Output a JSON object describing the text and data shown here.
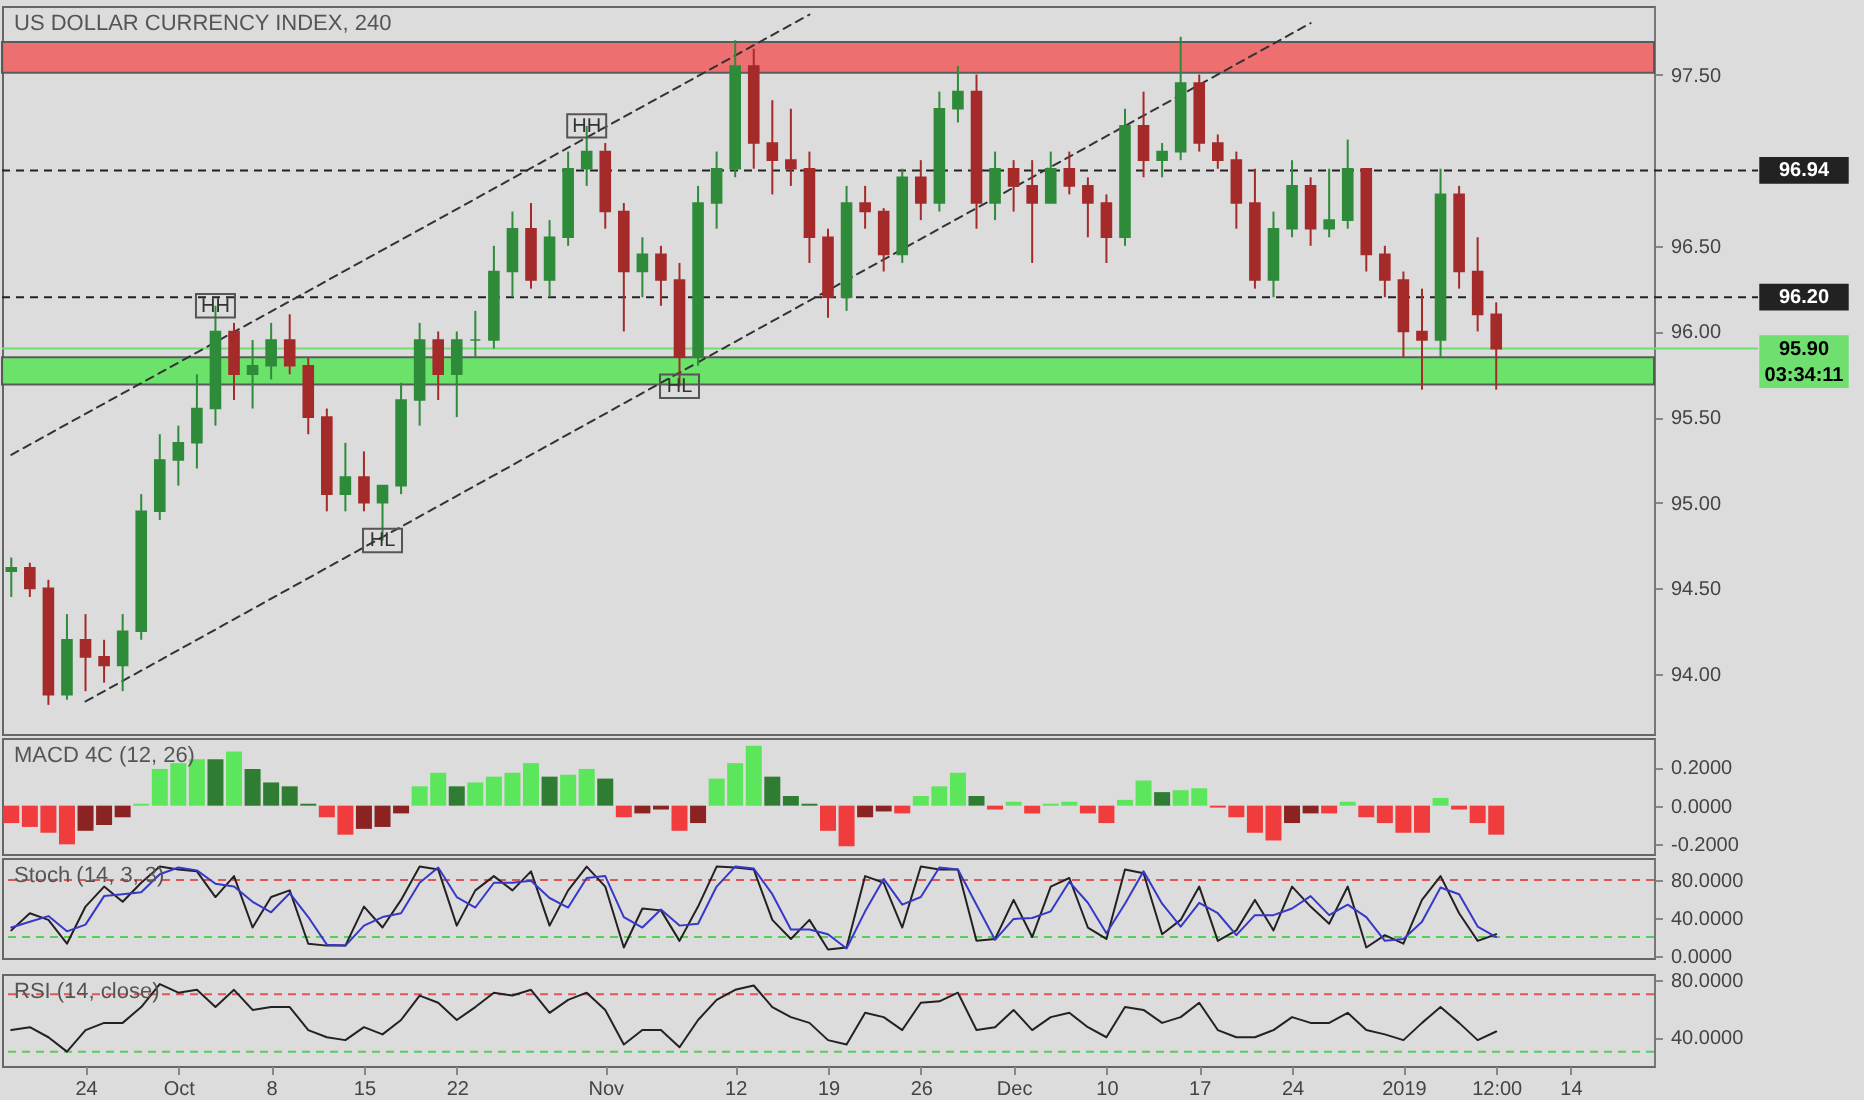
{
  "chart_data": [
    {
      "type": "candlestick",
      "title": "US DOLLAR CURRENCY INDEX, 240",
      "tick_labels": "y",
      "categories": [
        null,
        null,
        null,
        null,
        null,
        null,
        null,
        null,
        null,
        null,
        null,
        null,
        null,
        null,
        null,
        null,
        null,
        null,
        null,
        null,
        null,
        null,
        null,
        null,
        null,
        null,
        null,
        null,
        null,
        null,
        null,
        null,
        null,
        null,
        null,
        null,
        null,
        null,
        null,
        null,
        null,
        null,
        null,
        null,
        null,
        null,
        null,
        null,
        null,
        null,
        null,
        null,
        null,
        null,
        null,
        null,
        null,
        null,
        null,
        null,
        null,
        null,
        null,
        null,
        null,
        null,
        null,
        null,
        null,
        null,
        null,
        null,
        null,
        null,
        null,
        null,
        null,
        null,
        null,
        null,
        null,
        null,
        null,
        null,
        null,
        null,
        null,
        null,
        null
      ],
      "ohlc": [
        [
          94.6,
          94.68,
          94.45,
          94.62
        ],
        [
          94.62,
          94.65,
          94.45,
          94.5
        ],
        [
          94.5,
          94.55,
          93.82,
          93.88
        ],
        [
          93.88,
          94.35,
          93.85,
          94.2
        ],
        [
          94.2,
          94.35,
          93.9,
          94.1
        ],
        [
          94.1,
          94.2,
          93.95,
          94.05
        ],
        [
          94.05,
          94.35,
          93.9,
          94.25
        ],
        [
          94.25,
          95.05,
          94.2,
          94.95
        ],
        [
          94.95,
          95.4,
          94.9,
          95.25
        ],
        [
          95.25,
          95.45,
          95.1,
          95.35
        ],
        [
          95.35,
          95.75,
          95.2,
          95.55
        ],
        [
          95.55,
          96.15,
          95.45,
          96.0
        ],
        [
          96.0,
          96.05,
          95.6,
          95.75
        ],
        [
          95.75,
          95.95,
          95.55,
          95.8
        ],
        [
          95.8,
          96.05,
          95.72,
          95.95
        ],
        [
          95.95,
          96.1,
          95.75,
          95.8
        ],
        [
          95.8,
          95.85,
          95.4,
          95.5
        ],
        [
          95.5,
          95.55,
          94.95,
          95.05
        ],
        [
          95.05,
          95.35,
          94.95,
          95.15
        ],
        [
          95.15,
          95.3,
          94.95,
          95.0
        ],
        [
          95.0,
          95.1,
          94.78,
          95.1
        ],
        [
          95.1,
          95.7,
          95.05,
          95.6
        ],
        [
          95.6,
          96.05,
          95.45,
          95.95
        ],
        [
          95.95,
          96.0,
          95.6,
          95.75
        ],
        [
          95.75,
          96.0,
          95.5,
          95.95
        ],
        [
          95.95,
          96.12,
          95.85,
          95.95
        ],
        [
          95.95,
          96.5,
          95.9,
          96.35
        ],
        [
          96.35,
          96.7,
          96.2,
          96.6
        ],
        [
          96.6,
          96.75,
          96.25,
          96.3
        ],
        [
          96.3,
          96.65,
          96.2,
          96.55
        ],
        [
          96.55,
          97.05,
          96.5,
          96.95
        ],
        [
          96.95,
          97.2,
          96.85,
          97.05
        ],
        [
          97.05,
          97.1,
          96.6,
          96.7
        ],
        [
          96.7,
          96.75,
          96.0,
          96.35
        ],
        [
          96.35,
          96.55,
          96.2,
          96.45
        ],
        [
          96.45,
          96.5,
          96.15,
          96.3
        ],
        [
          96.3,
          96.4,
          95.68,
          95.85
        ],
        [
          95.85,
          96.85,
          95.8,
          96.75
        ],
        [
          96.75,
          97.05,
          96.6,
          96.95
        ],
        [
          96.95,
          97.7,
          96.9,
          97.55
        ],
        [
          97.55,
          97.65,
          96.95,
          97.1
        ],
        [
          97.1,
          97.35,
          96.8,
          97.0
        ],
        [
          97.0,
          97.3,
          96.85,
          96.95
        ],
        [
          96.95,
          97.05,
          96.4,
          96.55
        ],
        [
          96.55,
          96.6,
          96.08,
          96.2
        ],
        [
          96.2,
          96.85,
          96.12,
          96.75
        ],
        [
          96.75,
          96.85,
          96.6,
          96.7
        ],
        [
          96.7,
          96.72,
          96.35,
          96.45
        ],
        [
          96.45,
          96.95,
          96.4,
          96.9
        ],
        [
          96.9,
          97.0,
          96.65,
          96.75
        ],
        [
          96.75,
          97.4,
          96.7,
          97.3
        ],
        [
          97.3,
          97.55,
          97.22,
          97.4
        ],
        [
          97.4,
          97.5,
          96.6,
          96.75
        ],
        [
          96.75,
          97.05,
          96.65,
          96.95
        ],
        [
          96.95,
          97.0,
          96.7,
          96.85
        ],
        [
          96.85,
          97.0,
          96.4,
          96.75
        ],
        [
          96.75,
          97.05,
          96.75,
          96.95
        ],
        [
          96.95,
          97.05,
          96.8,
          96.85
        ],
        [
          96.85,
          96.9,
          96.55,
          96.75
        ],
        [
          96.75,
          96.8,
          96.4,
          96.55
        ],
        [
          96.55,
          97.3,
          96.5,
          97.2
        ],
        [
          97.2,
          97.4,
          96.9,
          97.0
        ],
        [
          97.0,
          97.1,
          96.9,
          97.05
        ],
        [
          97.05,
          97.72,
          97.0,
          97.45
        ],
        [
          97.45,
          97.5,
          97.05,
          97.1
        ],
        [
          97.1,
          97.15,
          96.95,
          97.0
        ],
        [
          97.0,
          97.05,
          96.6,
          96.75
        ],
        [
          96.75,
          96.95,
          96.25,
          96.3
        ],
        [
          96.3,
          96.7,
          96.2,
          96.6
        ],
        [
          96.6,
          97.0,
          96.55,
          96.85
        ],
        [
          96.85,
          96.9,
          96.5,
          96.6
        ],
        [
          96.6,
          96.95,
          96.55,
          96.65
        ],
        [
          96.65,
          97.12,
          96.6,
          96.95
        ],
        [
          96.95,
          96.95,
          96.35,
          96.45
        ],
        [
          96.45,
          96.5,
          96.2,
          96.3
        ],
        [
          96.3,
          96.35,
          95.85,
          96.0
        ],
        [
          96.0,
          96.25,
          95.66,
          95.95
        ],
        [
          95.95,
          96.95,
          95.85,
          96.8
        ],
        [
          96.8,
          96.85,
          96.25,
          96.35
        ],
        [
          96.35,
          96.55,
          96.0,
          96.1
        ],
        [
          96.1,
          96.17,
          95.66,
          95.9
        ],
        null,
        null,
        null,
        null,
        null,
        null,
        null,
        null
      ],
      "colors": [
        "#2e8b3a",
        "#a52a2a",
        "#a52a2a",
        "#2e8b3a",
        "#a52a2a",
        "#a52a2a",
        "#2e8b3a",
        "#2e8b3a",
        "#2e8b3a",
        "#2e8b3a",
        "#2e8b3a",
        "#2e8b3a",
        "#a52a2a",
        "#2e8b3a",
        "#2e8b3a",
        "#a52a2a",
        "#a52a2a",
        "#a52a2a",
        "#2e8b3a",
        "#a52a2a",
        "#2e8b3a",
        "#2e8b3a",
        "#2e8b3a",
        "#a52a2a",
        "#2e8b3a",
        "#2e8b3a",
        "#2e8b3a",
        "#2e8b3a",
        "#a52a2a",
        "#2e8b3a",
        "#2e8b3a",
        "#2e8b3a",
        "#a52a2a",
        "#a52a2a",
        "#2e8b3a",
        "#a52a2a",
        "#a52a2a",
        "#2e8b3a",
        "#2e8b3a",
        "#2e8b3a",
        "#a52a2a",
        "#a52a2a",
        "#a52a2a",
        "#a52a2a",
        "#a52a2a",
        "#2e8b3a",
        "#a52a2a",
        "#a52a2a",
        "#2e8b3a",
        "#a52a2a",
        "#2e8b3a",
        "#2e8b3a",
        "#a52a2a",
        "#2e8b3a",
        "#a52a2a",
        "#a52a2a",
        "#2e8b3a",
        "#a52a2a",
        "#a52a2a",
        "#a52a2a",
        "#2e8b3a",
        "#a52a2a",
        "#2e8b3a",
        "#2e8b3a",
        "#a52a2a",
        "#a52a2a",
        "#a52a2a",
        "#a52a2a",
        "#2e8b3a",
        "#2e8b3a",
        "#a52a2a",
        "#2e8b3a",
        "#2e8b3a",
        "#a52a2a",
        "#a52a2a",
        "#a52a2a",
        "#a52a2a",
        "#2e8b3a",
        "#a52a2a",
        "#a52a2a",
        "#a52a2a",
        null,
        null,
        null,
        null,
        null,
        null,
        null,
        null
      ],
      "series": [
        {
          "type": "line",
          "color": "#333333",
          "line_style": "dashed",
          "values": [
            95.28,
            null,
            null,
            null,
            null,
            null,
            null,
            null,
            null,
            null,
            null,
            null,
            null,
            null,
            null,
            null,
            null,
            null,
            null,
            null,
            null,
            null,
            null,
            null,
            null,
            null,
            null,
            null,
            null,
            null,
            null,
            null,
            null,
            null,
            null,
            null,
            null,
            null,
            null,
            null,
            null,
            null,
            null,
            97.85,
            null,
            null,
            null,
            null,
            null,
            null,
            null,
            null,
            null,
            null,
            null,
            null,
            null,
            null,
            null,
            null,
            null,
            null,
            null,
            null,
            null,
            null,
            null,
            null,
            null,
            null,
            null,
            null,
            null,
            null,
            null,
            null,
            null,
            null,
            null,
            null,
            null,
            null,
            null,
            null,
            null,
            null,
            null,
            null,
            null
          ]
        },
        {
          "type": "line",
          "color": "#333333",
          "line_style": "dashed",
          "values": [
            null,
            null,
            null,
            null,
            93.84,
            null,
            null,
            null,
            null,
            null,
            null,
            null,
            null,
            null,
            null,
            null,
            null,
            null,
            null,
            null,
            null,
            null,
            null,
            null,
            null,
            null,
            null,
            null,
            null,
            null,
            null,
            null,
            null,
            null,
            null,
            null,
            null,
            null,
            null,
            null,
            null,
            null,
            null,
            null,
            null,
            null,
            null,
            null,
            null,
            null,
            null,
            null,
            null,
            null,
            null,
            null,
            null,
            null,
            null,
            null,
            null,
            null,
            null,
            null,
            null,
            null,
            null,
            null,
            null,
            null,
            97.8,
            null,
            null,
            null,
            null,
            null,
            null,
            null,
            null,
            null,
            null,
            null,
            null,
            null,
            null,
            null,
            null,
            null,
            null
          ]
        }
      ],
      "ylim": [
        93.65,
        97.9
      ],
      "yticks": [
        {
          "value": 94,
          "label": "94.00"
        },
        {
          "value": 94.5,
          "label": "94.50"
        },
        {
          "value": 95,
          "label": "95.00"
        },
        {
          "value": 95.5,
          "label": "95.50"
        },
        {
          "value": 96,
          "label": "96.00"
        },
        {
          "value": 96.5,
          "label": "96.50"
        },
        {
          "value": 97.5,
          "label": "97.50"
        }
      ],
      "bands": [
        {
          "axis": "y",
          "from": 97.51,
          "to": 97.69,
          "color": "#ee6a6a"
        },
        {
          "axis": "y",
          "from": 95.69,
          "to": 95.85,
          "color": "#66e466"
        }
      ],
      "ref_lines": [
        {
          "axis": "y",
          "value": 96.94,
          "label": "96.94",
          "color": "#222222",
          "line_style": "dashed"
        },
        {
          "axis": "y",
          "value": 96.2,
          "label": "96.20",
          "color": "#222222",
          "line_style": "dashed"
        },
        {
          "axis": "y",
          "value": 95.9,
          "label": "95.90",
          "color": "#6fe06f",
          "line_style": "solid"
        }
      ],
      "annotations": [
        {
          "text": "HH",
          "y": 96.15
        },
        {
          "text": "HH",
          "y": 97.2
        },
        {
          "text": "HL",
          "y": 94.78
        },
        {
          "text": "HL",
          "y": 95.68
        },
        "03:34:11"
      ]
    },
    {
      "type": "bar",
      "title": "MACD 4C (12, 26)",
      "tick_labels": "y",
      "categories": [
        null,
        null,
        null,
        null,
        null,
        null,
        null,
        null,
        null,
        null,
        null,
        null,
        null,
        null,
        null,
        null,
        null,
        null,
        null,
        null,
        null,
        null,
        null,
        null,
        null,
        null,
        null,
        null,
        null,
        null,
        null,
        null,
        null,
        null,
        null,
        null,
        null,
        null,
        null,
        null,
        null,
        null,
        null,
        null,
        null,
        null,
        null,
        null,
        null,
        null,
        null,
        null,
        null,
        null,
        null,
        null,
        null,
        null,
        null,
        null,
        null,
        null,
        null,
        null,
        null,
        null,
        null,
        null,
        null,
        null,
        null,
        null,
        null,
        null,
        null,
        null,
        null,
        null,
        null,
        null,
        null,
        null,
        null,
        null,
        null,
        null,
        null,
        null,
        null
      ],
      "values": [
        -0.09,
        -0.11,
        -0.14,
        -0.2,
        -0.13,
        -0.1,
        -0.06,
        0.01,
        0.19,
        0.22,
        0.24,
        0.24,
        0.28,
        0.19,
        0.12,
        0.1,
        0.01,
        -0.06,
        -0.15,
        -0.12,
        -0.11,
        -0.04,
        0.1,
        0.17,
        0.1,
        0.12,
        0.15,
        0.17,
        0.22,
        0.15,
        0.16,
        0.19,
        0.14,
        -0.06,
        -0.04,
        -0.02,
        -0.13,
        -0.09,
        0.14,
        0.22,
        0.31,
        0.15,
        0.05,
        0.01,
        -0.13,
        -0.21,
        -0.06,
        -0.03,
        -0.04,
        0.05,
        0.1,
        0.17,
        0.05,
        -0.02,
        0.02,
        -0.04,
        0.01,
        0.02,
        -0.04,
        -0.09,
        0.03,
        0.13,
        0.07,
        0.08,
        0.09,
        -0.01,
        -0.06,
        -0.14,
        -0.18,
        -0.09,
        -0.04,
        -0.04,
        0.02,
        -0.06,
        -0.09,
        -0.14,
        -0.14,
        0.04,
        -0.02,
        -0.09,
        -0.15,
        null,
        null,
        null,
        null,
        null,
        null,
        null,
        null
      ],
      "colors": [
        "#f03c3c",
        "#f03c3c",
        "#f03c3c",
        "#f03c3c",
        "#8b2323",
        "#8b2323",
        "#8b2323",
        "#5ce65c",
        "#5ce65c",
        "#5ce65c",
        "#5ce65c",
        "#2e7d32",
        "#5ce65c",
        "#2e7d32",
        "#2e7d32",
        "#2e7d32",
        "#2e7d32",
        "#f03c3c",
        "#f03c3c",
        "#8b2323",
        "#8b2323",
        "#8b2323",
        "#5ce65c",
        "#5ce65c",
        "#2e7d32",
        "#5ce65c",
        "#5ce65c",
        "#5ce65c",
        "#5ce65c",
        "#2e7d32",
        "#5ce65c",
        "#5ce65c",
        "#2e7d32",
        "#f03c3c",
        "#8b2323",
        "#8b2323",
        "#f03c3c",
        "#8b2323",
        "#5ce65c",
        "#5ce65c",
        "#5ce65c",
        "#2e7d32",
        "#2e7d32",
        "#2e7d32",
        "#f03c3c",
        "#f03c3c",
        "#8b2323",
        "#8b2323",
        "#f03c3c",
        "#5ce65c",
        "#5ce65c",
        "#5ce65c",
        "#2e7d32",
        "#f03c3c",
        "#5ce65c",
        "#f03c3c",
        "#5ce65c",
        "#5ce65c",
        "#f03c3c",
        "#f03c3c",
        "#5ce65c",
        "#5ce65c",
        "#2e7d32",
        "#5ce65c",
        "#5ce65c",
        "#f03c3c",
        "#f03c3c",
        "#f03c3c",
        "#f03c3c",
        "#8b2323",
        "#8b2323",
        "#f03c3c",
        "#5ce65c",
        "#f03c3c",
        "#f03c3c",
        "#f03c3c",
        "#f03c3c",
        "#5ce65c",
        "#f03c3c",
        "#f03c3c",
        "#f03c3c",
        null,
        null,
        null,
        null,
        null,
        null,
        null,
        null
      ],
      "ylim": [
        -0.25,
        0.35
      ],
      "yticks": [
        {
          "value": 0.2,
          "label": "0.2000"
        },
        {
          "value": 0,
          "label": "0.0000"
        },
        {
          "value": -0.2,
          "label": "-0.2000"
        }
      ]
    },
    {
      "type": "line",
      "title": "Stoch (14, 3, 3)",
      "tick_labels": "y",
      "categories": [
        null,
        null,
        null,
        null,
        null,
        null,
        null,
        null,
        null,
        null,
        null,
        null,
        null,
        null,
        null,
        null,
        null,
        null,
        null,
        null,
        null,
        null,
        null,
        null,
        null,
        null,
        null,
        null,
        null,
        null,
        null,
        null,
        null,
        null,
        null,
        null,
        null,
        null,
        null,
        null,
        null,
        null,
        null,
        null,
        null,
        null,
        null,
        null,
        null,
        null,
        null,
        null,
        null,
        null,
        null,
        null,
        null,
        null,
        null,
        null,
        null,
        null,
        null,
        null,
        null,
        null,
        null,
        null,
        null,
        null,
        null,
        null,
        null,
        null,
        null,
        null,
        null,
        null,
        null,
        null,
        null,
        null,
        null,
        null,
        null,
        null,
        null,
        null,
        null
      ],
      "series": [
        {
          "color": "#222222",
          "values": [
            27,
            45,
            38,
            13,
            52,
            73,
            57,
            77,
            94,
            91,
            89,
            62,
            84,
            30,
            62,
            69,
            13,
            11,
            11,
            52,
            30,
            59,
            94,
            91,
            32,
            69,
            84,
            69,
            89,
            32,
            69,
            94,
            73,
            9,
            50,
            48,
            16,
            52,
            94,
            93,
            91,
            38,
            18,
            38,
            7,
            9,
            84,
            77,
            30,
            94,
            91,
            91,
            16,
            18,
            59,
            20,
            73,
            82,
            30,
            18,
            91,
            87,
            23,
            38,
            73,
            16,
            27,
            59,
            27,
            73,
            52,
            34,
            73,
            9,
            22,
            13,
            59,
            84,
            45,
            16,
            23,
            null,
            null,
            null,
            null,
            null,
            null,
            null,
            null
          ]
        },
        {
          "color": "#3838c8",
          "values": [
            30,
            36,
            42,
            26,
            33,
            63,
            65,
            67,
            86,
            93,
            90,
            76,
            73,
            57,
            46,
            66,
            41,
            12,
            11,
            32,
            41,
            45,
            77,
            93,
            62,
            51,
            77,
            77,
            79,
            61,
            51,
            82,
            84,
            41,
            30,
            49,
            32,
            34,
            73,
            94,
            92,
            65,
            28,
            28,
            23,
            8,
            47,
            81,
            54,
            62,
            93,
            91,
            54,
            17,
            39,
            40,
            47,
            78,
            56,
            24,
            55,
            89,
            55,
            31,
            56,
            45,
            22,
            43,
            43,
            50,
            63,
            43,
            54,
            41,
            16,
            18,
            36,
            72,
            65,
            31,
            20,
            null,
            null,
            null,
            null,
            null,
            null,
            null,
            null
          ]
        }
      ],
      "ylim": [
        -2,
        103
      ],
      "yticks": [
        {
          "value": 80,
          "label": "80.0000"
        },
        {
          "value": 40,
          "label": "40.0000"
        },
        {
          "value": 0,
          "label": "0.0000"
        }
      ],
      "ref_lines": [
        {
          "axis": "y",
          "value": 80,
          "color": "#e05555",
          "line_style": "dashed"
        },
        {
          "axis": "y",
          "value": 20,
          "color": "#55d055",
          "line_style": "dashed"
        }
      ]
    },
    {
      "type": "line",
      "title": "RSI (14, close)",
      "categories": [
        null,
        null,
        null,
        null,
        "24",
        null,
        null,
        null,
        null,
        "Oct",
        null,
        null,
        null,
        null,
        "8",
        null,
        null,
        null,
        null,
        "15",
        null,
        null,
        null,
        null,
        "22",
        null,
        null,
        null,
        null,
        null,
        null,
        null,
        "Nov",
        null,
        null,
        null,
        null,
        null,
        null,
        "12",
        null,
        null,
        null,
        null,
        "19",
        null,
        null,
        null,
        null,
        "26",
        null,
        null,
        null,
        null,
        "Dec",
        null,
        null,
        null,
        null,
        "10",
        null,
        null,
        null,
        null,
        "17",
        null,
        null,
        null,
        null,
        "24",
        null,
        null,
        null,
        null,
        null,
        "2019",
        null,
        null,
        null,
        null,
        "12:00",
        null,
        null,
        null,
        "14",
        null,
        null,
        null,
        null
      ],
      "series": [
        {
          "color": "#222222",
          "values": [
            45,
            47,
            40,
            30,
            45,
            50,
            50,
            61,
            77,
            71,
            73,
            61,
            73,
            59,
            61,
            61,
            45,
            40,
            38,
            47,
            42,
            52,
            69,
            64,
            52,
            61,
            71,
            69,
            73,
            57,
            66,
            71,
            59,
            35,
            45,
            45,
            33,
            52,
            66,
            73,
            76,
            61,
            54,
            50,
            38,
            35,
            57,
            54,
            45,
            64,
            65,
            71,
            45,
            47,
            59,
            45,
            54,
            57,
            47,
            40,
            61,
            59,
            50,
            54,
            64,
            45,
            40,
            40,
            45,
            54,
            50,
            50,
            57,
            45,
            42,
            38,
            50,
            61,
            50,
            38,
            44,
            null,
            null,
            null,
            null,
            null,
            null,
            null,
            null
          ]
        }
      ],
      "ylim": [
        20,
        84
      ],
      "yticks": [
        {
          "value": 80,
          "label": "80.0000"
        },
        {
          "value": 40,
          "label": "40.0000"
        }
      ],
      "ref_lines": [
        {
          "axis": "y",
          "value": 70,
          "color": "#e05555",
          "line_style": "dashed"
        },
        {
          "axis": "y",
          "value": 30,
          "color": "#55d055",
          "line_style": "dashed"
        }
      ]
    }
  ]
}
